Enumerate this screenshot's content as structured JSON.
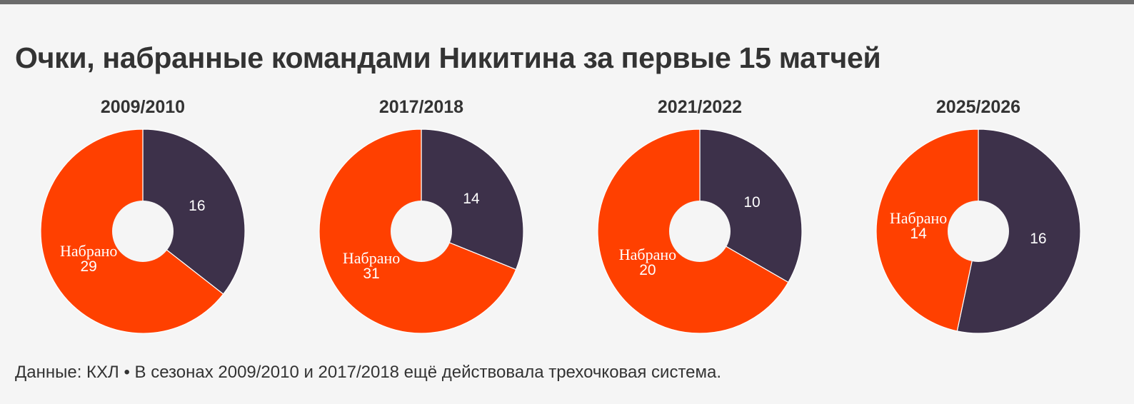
{
  "header": {
    "title": "Очки, набранные командами Никитина за первые 15 матчей"
  },
  "colors": {
    "earned": "#ff4000",
    "other": "#3d314a",
    "background": "#f5f5f5"
  },
  "chart_data": [
    {
      "type": "pie",
      "title": "2009/2010",
      "slices": [
        {
          "label": "",
          "value": 16,
          "color": "#3d314a"
        },
        {
          "label": "Набрано",
          "value": 29,
          "color": "#ff4000"
        }
      ]
    },
    {
      "type": "pie",
      "title": "2017/2018",
      "slices": [
        {
          "label": "",
          "value": 14,
          "color": "#3d314a"
        },
        {
          "label": "Набрано",
          "value": 31,
          "color": "#ff4000"
        }
      ]
    },
    {
      "type": "pie",
      "title": "2021/2022",
      "slices": [
        {
          "label": "",
          "value": 10,
          "color": "#3d314a"
        },
        {
          "label": "Набрано",
          "value": 20,
          "color": "#ff4000"
        }
      ]
    },
    {
      "type": "pie",
      "title": "2025/2026",
      "slices": [
        {
          "label": "",
          "value": 16,
          "color": "#3d314a"
        },
        {
          "label": "Набрано",
          "value": 14,
          "color": "#ff4000"
        }
      ]
    }
  ],
  "footer": {
    "note": "Данные: КХЛ • В сезонах 2009/2010 и 2017/2018 ещё действовала трехочковая система."
  }
}
